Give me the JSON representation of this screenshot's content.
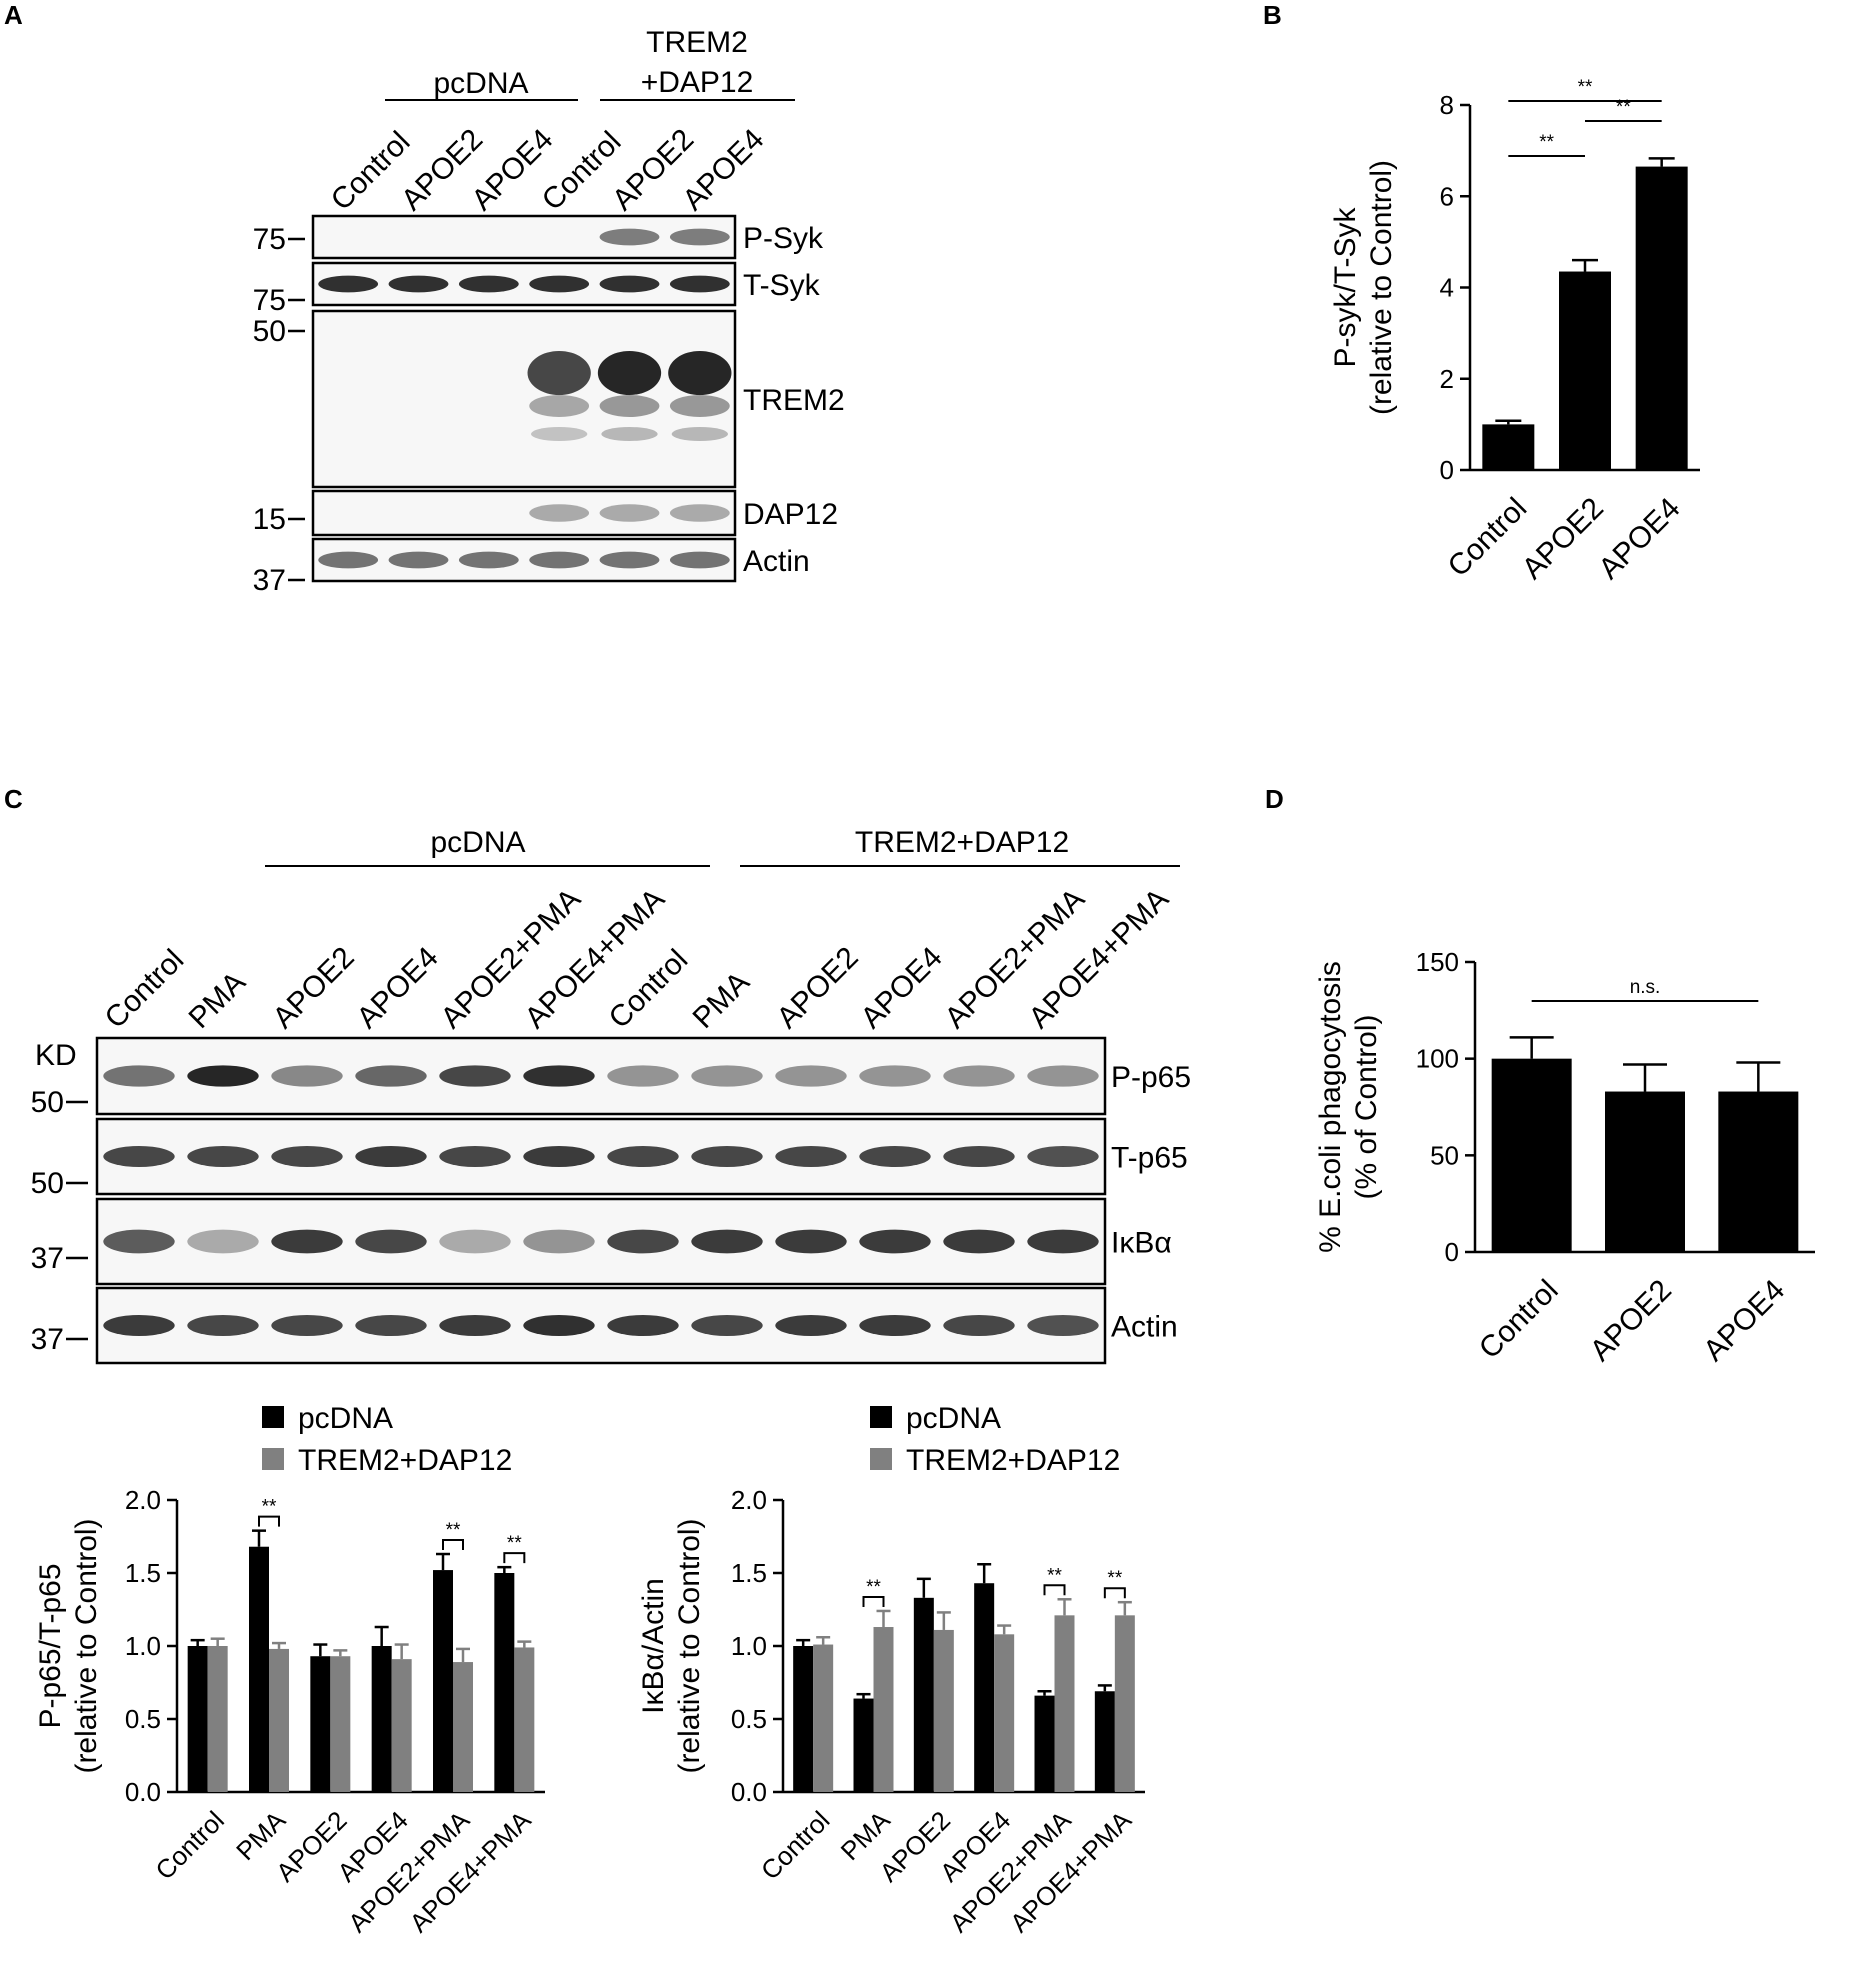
{
  "panels": {
    "A": {
      "letter": "A",
      "groups": [
        "pcDNA",
        "TREM2 +DAP12"
      ],
      "group_lines": [
        [
          "pcDNA"
        ],
        [
          "TREM2",
          "+DAP12"
        ]
      ],
      "lanes": [
        "Control",
        "APOE2",
        "APOE4",
        "Control",
        "APOE2",
        "APOE4"
      ],
      "blots": [
        {
          "name": "P-Syk",
          "marker": "75"
        },
        {
          "name": "T-Syk",
          "marker": "75"
        },
        {
          "name": "TREM2",
          "marker": "50"
        },
        {
          "name": "DAP12",
          "marker": "15"
        },
        {
          "name": "Actin",
          "marker": "37"
        }
      ]
    },
    "B": {
      "letter": "B"
    },
    "C": {
      "letter": "C",
      "groups": [
        "pcDNA",
        "TREM2+DAP12"
      ],
      "kd_label": "KD",
      "lanes": [
        "Control",
        "PMA",
        "APOE2",
        "APOE4",
        "APOE2+PMA",
        "APOE4+PMA",
        "Control",
        "PMA",
        "APOE2",
        "APOE4",
        "APOE2+PMA",
        "APOE4+PMA"
      ],
      "blots": [
        {
          "name": "P-p65",
          "marker": "50"
        },
        {
          "name": "T-p65",
          "marker": "50"
        },
        {
          "name": "IκBα",
          "marker": "37"
        },
        {
          "name": "Actin",
          "marker": "37"
        }
      ]
    },
    "D": {
      "letter": "D"
    }
  },
  "chart_data": [
    {
      "id": "B",
      "type": "bar",
      "categories": [
        "Control",
        "APOE2",
        "APOE4"
      ],
      "values": [
        1.0,
        4.35,
        6.65
      ],
      "errors": [
        0.08,
        0.25,
        0.18
      ],
      "ylabel": [
        "P-syk/T-Syk",
        "(relative to Control)"
      ],
      "ylim": [
        0,
        8
      ],
      "yticks": [
        "0",
        "2",
        "4",
        "6",
        "8"
      ],
      "bar_color": "#000000",
      "significance": [
        {
          "from": "Control",
          "to": "APOE4",
          "label": "**"
        },
        {
          "from": "Control",
          "to": "APOE2",
          "label": "**"
        },
        {
          "from": "APOE2",
          "to": "APOE4",
          "label": "**"
        }
      ]
    },
    {
      "id": "D",
      "type": "bar",
      "categories": [
        "Control",
        "APOE2",
        "APOE4"
      ],
      "values": [
        100,
        83,
        83
      ],
      "errors": [
        11,
        14,
        15
      ],
      "ylabel": [
        "% E.coli phagocytosis",
        "(% of Control)"
      ],
      "ylim": [
        0,
        150
      ],
      "yticks": [
        "0",
        "50",
        "100",
        "150"
      ],
      "bar_color": "#000000",
      "significance": [
        {
          "from": "Control",
          "to": "APOE4",
          "label": "n.s."
        }
      ]
    },
    {
      "id": "C-left",
      "type": "bar",
      "categories": [
        "Control",
        "PMA",
        "APOE2",
        "APOE4",
        "APOE2+PMA",
        "APOE4+PMA"
      ],
      "series": [
        {
          "name": "pcDNA",
          "color": "#000000",
          "values": [
            1.0,
            1.68,
            0.93,
            1.0,
            1.52,
            1.5
          ],
          "errors": [
            0.04,
            0.11,
            0.08,
            0.13,
            0.11,
            0.04
          ]
        },
        {
          "name": "TREM2+DAP12",
          "color": "#808080",
          "values": [
            1.0,
            0.98,
            0.93,
            0.91,
            0.89,
            0.99
          ],
          "errors": [
            0.05,
            0.04,
            0.04,
            0.1,
            0.09,
            0.04
          ]
        }
      ],
      "ylabel": [
        "P-p65/T-p65",
        "(relative to Control)"
      ],
      "ylim": [
        0,
        2.0
      ],
      "yticks": [
        "0.0",
        "0.5",
        "1.0",
        "1.5",
        "2.0"
      ],
      "significance": [
        {
          "category": "PMA",
          "label": "**"
        },
        {
          "category": "APOE2+PMA",
          "label": "**"
        },
        {
          "category": "APOE4+PMA",
          "label": "**"
        }
      ]
    },
    {
      "id": "C-right",
      "type": "bar",
      "categories": [
        "Control",
        "PMA",
        "APOE2",
        "APOE4",
        "APOE2+PMA",
        "APOE4+PMA"
      ],
      "series": [
        {
          "name": "pcDNA",
          "color": "#000000",
          "values": [
            1.0,
            0.64,
            1.33,
            1.43,
            0.66,
            0.69
          ],
          "errors": [
            0.04,
            0.03,
            0.13,
            0.13,
            0.03,
            0.04
          ]
        },
        {
          "name": "TREM2+DAP12",
          "color": "#808080",
          "values": [
            1.01,
            1.13,
            1.11,
            1.08,
            1.21,
            1.21
          ],
          "errors": [
            0.05,
            0.11,
            0.12,
            0.06,
            0.11,
            0.09
          ]
        }
      ],
      "ylabel": [
        "IκBα/Actin",
        "(relative to Control)"
      ],
      "ylim": [
        0,
        2.0
      ],
      "yticks": [
        "0.0",
        "0.5",
        "1.0",
        "1.5",
        "2.0"
      ],
      "significance": [
        {
          "category": "PMA",
          "label": "**"
        },
        {
          "category": "APOE2+PMA",
          "label": "**"
        },
        {
          "category": "APOE4+PMA",
          "label": "**"
        }
      ]
    }
  ]
}
